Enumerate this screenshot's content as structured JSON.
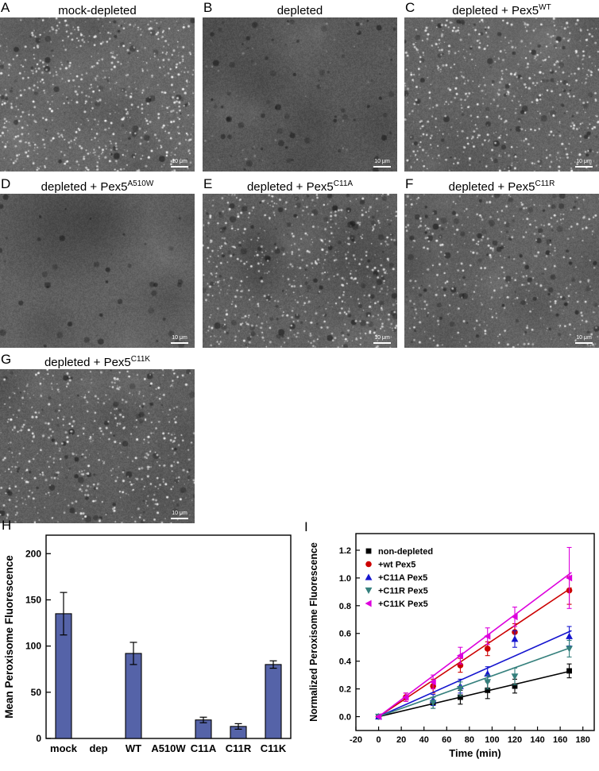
{
  "scale_label": "10 μm",
  "panels": [
    {
      "letter": "A",
      "title": "mock-depleted",
      "sup": ""
    },
    {
      "letter": "B",
      "title": "depleted",
      "sup": ""
    },
    {
      "letter": "C",
      "title": "depleted + Pex5",
      "sup": "WT"
    },
    {
      "letter": "D",
      "title": "depleted + Pex5",
      "sup": "A510W"
    },
    {
      "letter": "E",
      "title": "depleted + Pex5",
      "sup": "C11A"
    },
    {
      "letter": "F",
      "title": "depleted + Pex5",
      "sup": "C11R"
    },
    {
      "letter": "G",
      "title": "depleted + Pex5",
      "sup": "C11K"
    },
    {
      "letter": "H",
      "title": "",
      "sup": ""
    },
    {
      "letter": "I",
      "title": "",
      "sup": ""
    }
  ],
  "chart_data": [
    {
      "type": "bar",
      "panel": "H",
      "title": "",
      "xlabel": "",
      "ylabel": "Mean Peroxisome Fluorescence",
      "categories": [
        "mock",
        "dep",
        "WT",
        "A510W",
        "C11A",
        "C11R",
        "C11K"
      ],
      "values": [
        135,
        0,
        92,
        0,
        20,
        13,
        80
      ],
      "errors": [
        23,
        0,
        12,
        0,
        3,
        3,
        4
      ],
      "ylim": [
        0,
        220
      ],
      "yticks": [
        0,
        50,
        100,
        150,
        200
      ],
      "bar_color": "#5563a8",
      "grid": false,
      "legend_position": "none"
    },
    {
      "type": "scatter",
      "panel": "I",
      "title": "",
      "xlabel": "Time (min)",
      "ylabel": "Normalized Peroxisome Fluorescence",
      "xlim": [
        -20,
        190
      ],
      "ylim": [
        -0.1,
        1.32
      ],
      "xticks": [
        -20,
        0,
        20,
        40,
        60,
        80,
        100,
        120,
        140,
        160,
        180
      ],
      "yticks": [
        0.0,
        0.2,
        0.4,
        0.6,
        0.8,
        1.0,
        1.2
      ],
      "grid": false,
      "legend_position": "top-left-inside",
      "series": [
        {
          "label": "non-depleted",
          "color": "#000000",
          "marker": "square",
          "points": [
            [
              0,
              0.0,
              0.02
            ],
            [
              48,
              0.1,
              0.04
            ],
            [
              72,
              0.14,
              0.05
            ],
            [
              96,
              0.19,
              0.06
            ],
            [
              120,
              0.22,
              0.05
            ],
            [
              168,
              0.33,
              0.05
            ]
          ],
          "fit": [
            [
              0,
              0
            ],
            [
              170,
              0.33
            ]
          ]
        },
        {
          "label": "+wt Pex5",
          "color": "#cc0000",
          "marker": "circle",
          "points": [
            [
              0,
              0.0,
              0.02
            ],
            [
              24,
              0.14,
              0.03
            ],
            [
              48,
              0.22,
              0.05
            ],
            [
              72,
              0.37,
              0.05
            ],
            [
              96,
              0.49,
              0.05
            ],
            [
              120,
              0.61,
              0.06
            ],
            [
              168,
              0.91,
              0.1
            ]
          ],
          "fit": [
            [
              0,
              0
            ],
            [
              170,
              0.93
            ]
          ]
        },
        {
          "label": "+C11A Pex5",
          "color": "#1515cf",
          "marker": "triangle-up",
          "points": [
            [
              0,
              0.0,
              0.02
            ],
            [
              48,
              0.12,
              0.04
            ],
            [
              72,
              0.22,
              0.05
            ],
            [
              96,
              0.31,
              0.05
            ],
            [
              120,
              0.56,
              0.06
            ],
            [
              168,
              0.58,
              0.07
            ]
          ],
          "fit": [
            [
              0,
              0
            ],
            [
              170,
              0.62
            ]
          ]
        },
        {
          "label": "+C11R Pex5",
          "color": "#35807d",
          "marker": "triangle-down",
          "points": [
            [
              0,
              0.0,
              0.02
            ],
            [
              48,
              0.1,
              0.04
            ],
            [
              72,
              0.2,
              0.05
            ],
            [
              96,
              0.25,
              0.05
            ],
            [
              120,
              0.29,
              0.06
            ],
            [
              168,
              0.49,
              0.06
            ]
          ],
          "fit": [
            [
              0,
              0
            ],
            [
              170,
              0.5
            ]
          ]
        },
        {
          "label": "+C11K Pex5",
          "color": "#dd00dd",
          "marker": "triangle-left",
          "points": [
            [
              0,
              0.0,
              0.02
            ],
            [
              24,
              0.14,
              0.03
            ],
            [
              48,
              0.25,
              0.05
            ],
            [
              72,
              0.44,
              0.06
            ],
            [
              96,
              0.58,
              0.06
            ],
            [
              120,
              0.72,
              0.07
            ],
            [
              168,
              1.0,
              0.22
            ]
          ],
          "fit": [
            [
              0,
              0
            ],
            [
              170,
              1.04
            ]
          ]
        }
      ]
    }
  ]
}
